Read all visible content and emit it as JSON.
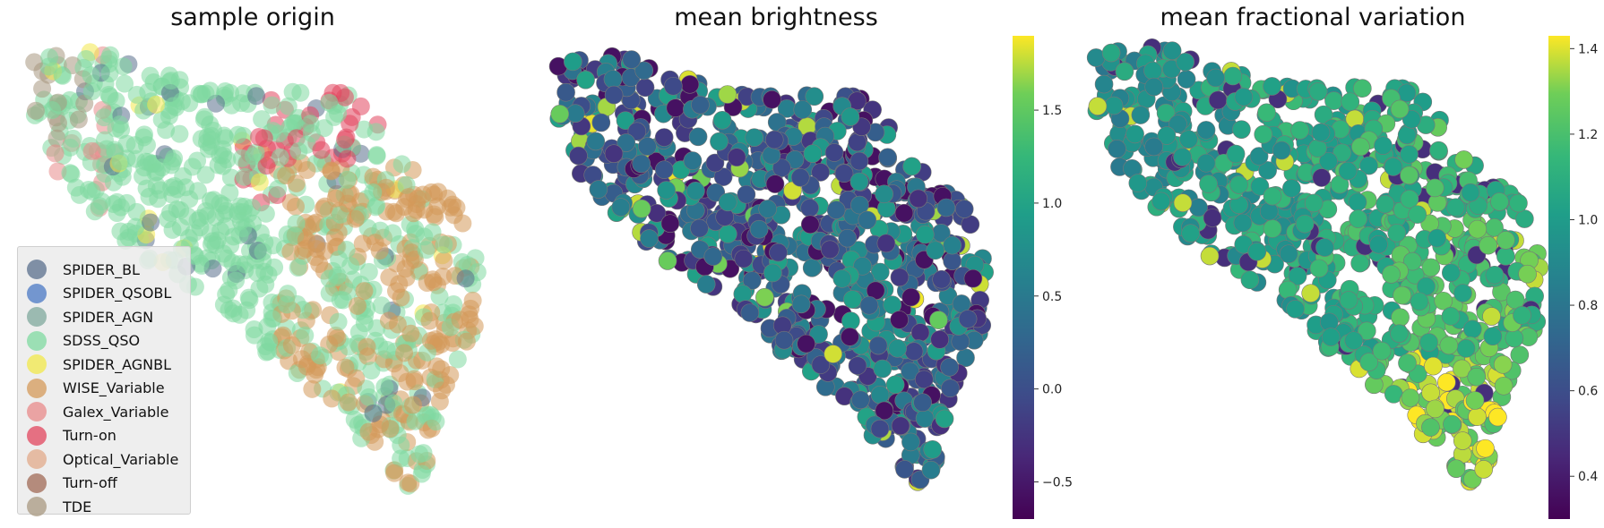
{
  "titles": {
    "left": "sample origin",
    "middle": "mean brightness",
    "right": "mean fractional variation"
  },
  "legend": [
    {
      "name": "SPIDER_BL",
      "color": "#5a6f8c"
    },
    {
      "name": "SPIDER_QSOBL",
      "color": "#4a78c4"
    },
    {
      "name": "SPIDER_AGN",
      "color": "#7fa89c"
    },
    {
      "name": "SDSS_QSO",
      "color": "#7fd9a0"
    },
    {
      "name": "SPIDER_AGNBL",
      "color": "#f2e84a"
    },
    {
      "name": "WISE_Variable",
      "color": "#d4995a"
    },
    {
      "name": "Galex_Variable",
      "color": "#e88a8a"
    },
    {
      "name": "Turn-on",
      "color": "#e2455e"
    },
    {
      "name": "Optical_Variable",
      "color": "#e2a98a"
    },
    {
      "name": "Turn-off",
      "color": "#a06a55"
    },
    {
      "name": "TDE",
      "color": "#a89880"
    }
  ],
  "colormap": "viridis",
  "chart_data": [
    {
      "type": "scatter",
      "title": "sample origin",
      "axes": "off",
      "legend_position": "lower-left",
      "series": [
        {
          "name": "SPIDER_BL",
          "color": "#5a6f8c"
        },
        {
          "name": "SPIDER_QSOBL",
          "color": "#4a78c4"
        },
        {
          "name": "SPIDER_AGN",
          "color": "#7fa89c"
        },
        {
          "name": "SDSS_QSO",
          "color": "#7fd9a0"
        },
        {
          "name": "SPIDER_AGNBL",
          "color": "#f2e84a"
        },
        {
          "name": "WISE_Variable",
          "color": "#d4995a"
        },
        {
          "name": "Galex_Variable",
          "color": "#e88a8a"
        },
        {
          "name": "Turn-on",
          "color": "#e2455e"
        },
        {
          "name": "Optical_Variable",
          "color": "#e2a98a"
        },
        {
          "name": "Turn-off",
          "color": "#a06a55"
        },
        {
          "name": "TDE",
          "color": "#a89880"
        }
      ]
    },
    {
      "type": "scatter",
      "title": "mean brightness",
      "axes": "off",
      "colorbar": {
        "range": [
          -0.7,
          1.9
        ],
        "ticks": [
          -0.5,
          0.0,
          0.5,
          1.0,
          1.5
        ],
        "tick_labels": [
          "−0.5",
          "0.0",
          "0.5",
          "1.0",
          "1.5"
        ]
      }
    },
    {
      "type": "scatter",
      "title": "mean fractional variation",
      "axes": "off",
      "colorbar": {
        "range": [
          0.3,
          1.43
        ],
        "ticks": [
          0.4,
          0.6,
          0.8,
          1.0,
          1.2,
          1.4
        ],
        "tick_labels": [
          "0.4",
          "0.6",
          "0.8",
          "1.0",
          "1.2",
          "1.4"
        ]
      }
    }
  ]
}
